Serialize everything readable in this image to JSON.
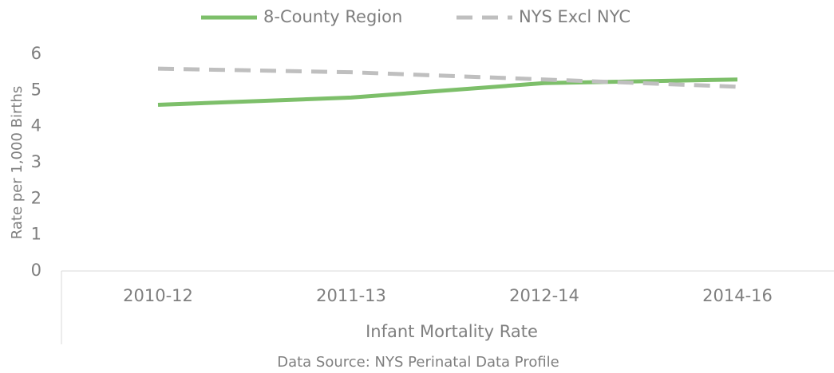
{
  "chart_data": {
    "type": "line",
    "categories": [
      "2010-12",
      "2011-13",
      "2012-14",
      "2014-16"
    ],
    "series": [
      {
        "name": "8-County Region",
        "color": "#7dbf6a",
        "dash": false,
        "values": [
          4.6,
          4.8,
          5.2,
          5.3
        ]
      },
      {
        "name": "NYS Excl NYC",
        "color": "#bfbfbf",
        "dash": true,
        "values": [
          5.6,
          5.5,
          5.3,
          5.1
        ]
      }
    ],
    "ylabel": "Rate per 1,000 Births",
    "xlabel": "Infant Mortality Rate",
    "source": "Data Source: NYS Perinatal Data Profile",
    "ylim": [
      0,
      6
    ],
    "yticks": [
      0,
      1,
      2,
      3,
      4,
      5,
      6
    ],
    "grid": false,
    "legend": "top"
  }
}
